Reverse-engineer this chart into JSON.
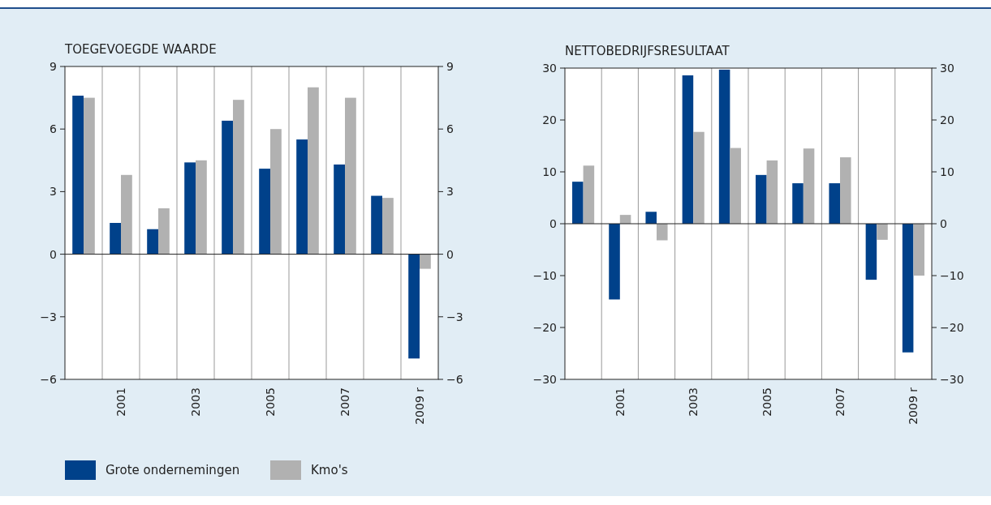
{
  "chart_data": [
    {
      "type": "bar",
      "title": "TOEGEVOEGDE WAARDE",
      "categories": [
        null,
        "2001",
        null,
        "2003",
        null,
        "2005",
        null,
        "2007",
        null,
        "2009 r"
      ],
      "series": [
        {
          "name": "Grote ondernemingen",
          "color": "#00418a",
          "values": [
            7.6,
            1.5,
            1.2,
            4.4,
            6.4,
            4.1,
            5.5,
            4.3,
            2.8,
            -5.0
          ]
        },
        {
          "name": "Kmo's",
          "color": "#b1b1b1",
          "values": [
            7.5,
            3.8,
            2.2,
            4.5,
            7.4,
            6.0,
            8.0,
            7.5,
            2.7,
            -0.7
          ]
        }
      ],
      "ylim": [
        -6,
        9
      ],
      "yticks": [
        {
          "value": -6,
          "label": "−6"
        },
        {
          "value": -3,
          "label": "−3"
        },
        0,
        3,
        6,
        9
      ],
      "y2lim": [
        -6,
        9
      ],
      "y2ticks": [
        {
          "value": -6,
          "label": "−6"
        },
        {
          "value": -3,
          "label": "−3"
        },
        0,
        3,
        6,
        9
      ],
      "grid": "x",
      "legend": "bottom"
    },
    {
      "type": "bar",
      "title": "NETTOBEDRIJFSRESULTAAT",
      "categories": [
        null,
        "2001",
        null,
        "2003",
        null,
        "2005",
        null,
        "2007",
        null,
        "2009 r"
      ],
      "series": [
        {
          "color": "#00418a",
          "values": [
            8.1,
            -14.6,
            2.3,
            28.6,
            29.7,
            9.4,
            7.8,
            7.8,
            -10.8,
            -24.8
          ]
        },
        {
          "color": "#b1b1b1",
          "values": [
            11.2,
            1.7,
            -3.2,
            17.7,
            14.6,
            12.2,
            14.5,
            12.8,
            -3.1,
            -10.0
          ]
        }
      ],
      "ylim": [
        -30,
        30
      ],
      "yticks": [
        {
          "value": -30,
          "label": "−30"
        },
        {
          "value": -20,
          "label": "−20"
        },
        {
          "value": -10,
          "label": "−10"
        },
        0,
        10,
        20,
        30
      ],
      "y2lim": [
        -30,
        30
      ],
      "y2ticks": [
        {
          "value": -30,
          "label": "−30"
        },
        {
          "value": -20,
          "label": "−20"
        },
        {
          "value": -10,
          "label": "−10"
        },
        0,
        10,
        20,
        30
      ],
      "grid": "x",
      "legend": false
    }
  ]
}
